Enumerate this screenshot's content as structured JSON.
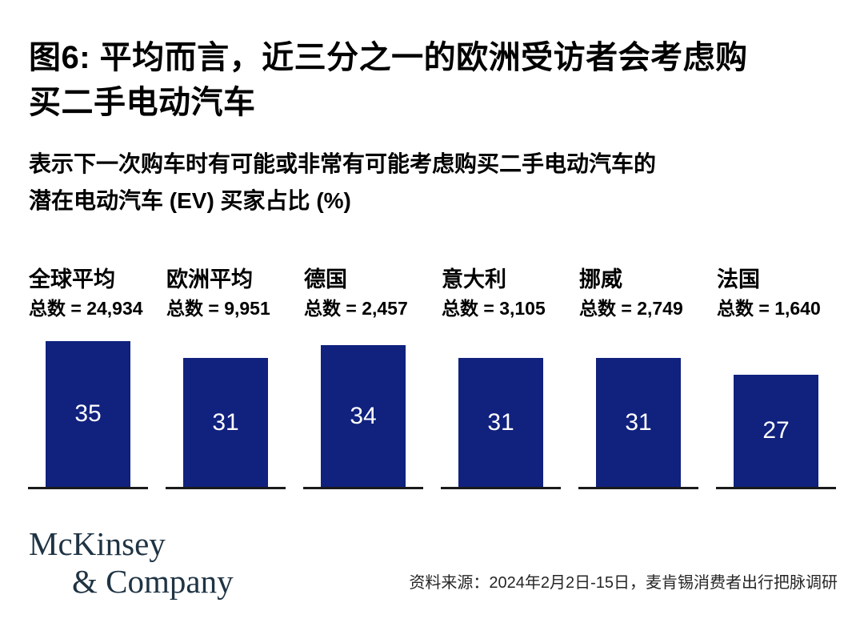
{
  "colors": {
    "bar": "#10217E",
    "bar_value_text": "#FFFFFF",
    "baseline": "#1A1A1A",
    "logo": "#1F3343"
  },
  "figure": {
    "title_lines": [
      "图6: 平均而言，近三分之一的欧洲受访者会考虑购",
      "买二手电动汽车"
    ],
    "subtitle_lines": [
      "表示下一次购车时有可能或非常有可能考虑购买二手电动汽车的",
      "潜在电动汽车 (EV) 买家占比 (%)"
    ],
    "columns": [
      {
        "country": "全球平均",
        "total_label": "总数 = 24,934",
        "value": 35
      },
      {
        "country": "欧洲平均",
        "total_label": "总数 = 9,951",
        "value": 31
      },
      {
        "country": "德国",
        "total_label": "总数 = 2,457",
        "value": 34
      },
      {
        "country": "意大利",
        "total_label": "总数 = 3,105",
        "value": 31
      },
      {
        "country": "挪威",
        "total_label": "总数 = 2,749",
        "value": 31
      },
      {
        "country": "法国",
        "total_label": "总数 = 1,640",
        "value": 27
      }
    ],
    "footer": {
      "logo_line1": "McKinsey",
      "logo_line2": "& Company",
      "source": "资料来源：2024年2月2日-15日，麦肯锡消费者出行把脉调研"
    }
  },
  "chart_data": {
    "type": "bar",
    "title": "图6: 平均而言，近三分之一的欧洲受访者会考虑购买二手电动汽车",
    "subtitle": "表示下一次购车时有可能或非常有可能考虑购买二手电动汽车的潜在电动汽车 (EV) 买家占比 (%)",
    "categories": [
      "全球平均",
      "欧洲平均",
      "德国",
      "意大利",
      "挪威",
      "法国"
    ],
    "values": [
      35,
      31,
      34,
      31,
      31,
      27
    ],
    "sample_size_labels": [
      "总数 = 24,934",
      "总数 = 9,951",
      "总数 = 2,457",
      "总数 = 3,105",
      "总数 = 2,749",
      "总数 = 1,640"
    ],
    "sample_sizes": [
      24934,
      9951,
      2457,
      3105,
      2749,
      1640
    ],
    "unit": "%",
    "ylim": [
      0,
      35
    ],
    "grid": false,
    "legend": false,
    "value_labels": "inside-white",
    "source": "资料来源：2024年2月2日-15日，麦肯锡消费者出行把脉调研"
  }
}
